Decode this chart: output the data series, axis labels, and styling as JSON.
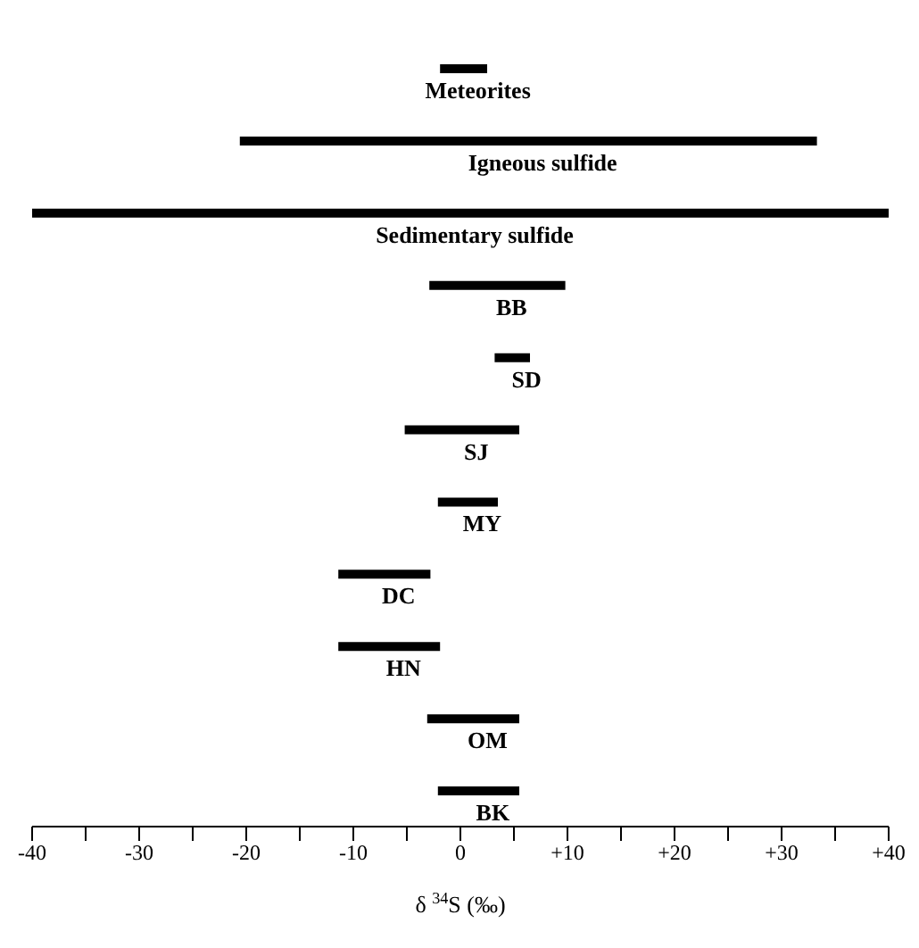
{
  "chart_data": {
    "type": "bar",
    "orientation": "horizontal",
    "xlabel": "δ $^{34}$S (‰)",
    "categories": [
      "Meteorites",
      "Igneous sulfide",
      "Sedimentary sulfide",
      "BB",
      "SD",
      "SJ",
      "MY",
      "DC",
      "HN",
      "OM",
      "BK"
    ],
    "base": [
      -1.9,
      -20.6,
      -40,
      -2.9,
      3.2,
      -5.2,
      -2.1,
      -11.4,
      -11.4,
      -3.1,
      -2.1
    ],
    "values": [
      4.4,
      53.9,
      80,
      12.7,
      3.3,
      10.7,
      5.6,
      8.6,
      9.5,
      8.6,
      7.6
    ],
    "color": "#000000",
    "xlim": [
      -40,
      40
    ],
    "xticks": [
      -40,
      {
        "value": -35,
        "label": null
      },
      -30,
      {
        "value": -25,
        "label": null
      },
      -20,
      {
        "value": -15,
        "label": null
      },
      -10,
      {
        "value": -5,
        "label": null
      },
      0,
      {
        "value": 5,
        "label": null
      },
      {
        "value": 10,
        "label": "+10"
      },
      {
        "value": 15,
        "label": null
      },
      {
        "value": 20,
        "label": "+20"
      },
      {
        "value": 25,
        "label": null
      },
      {
        "value": 30,
        "label": "+30"
      },
      {
        "value": 35,
        "label": null
      },
      {
        "value": 40,
        "label": "+40"
      }
    ],
    "tick_labels": "x"
  }
}
